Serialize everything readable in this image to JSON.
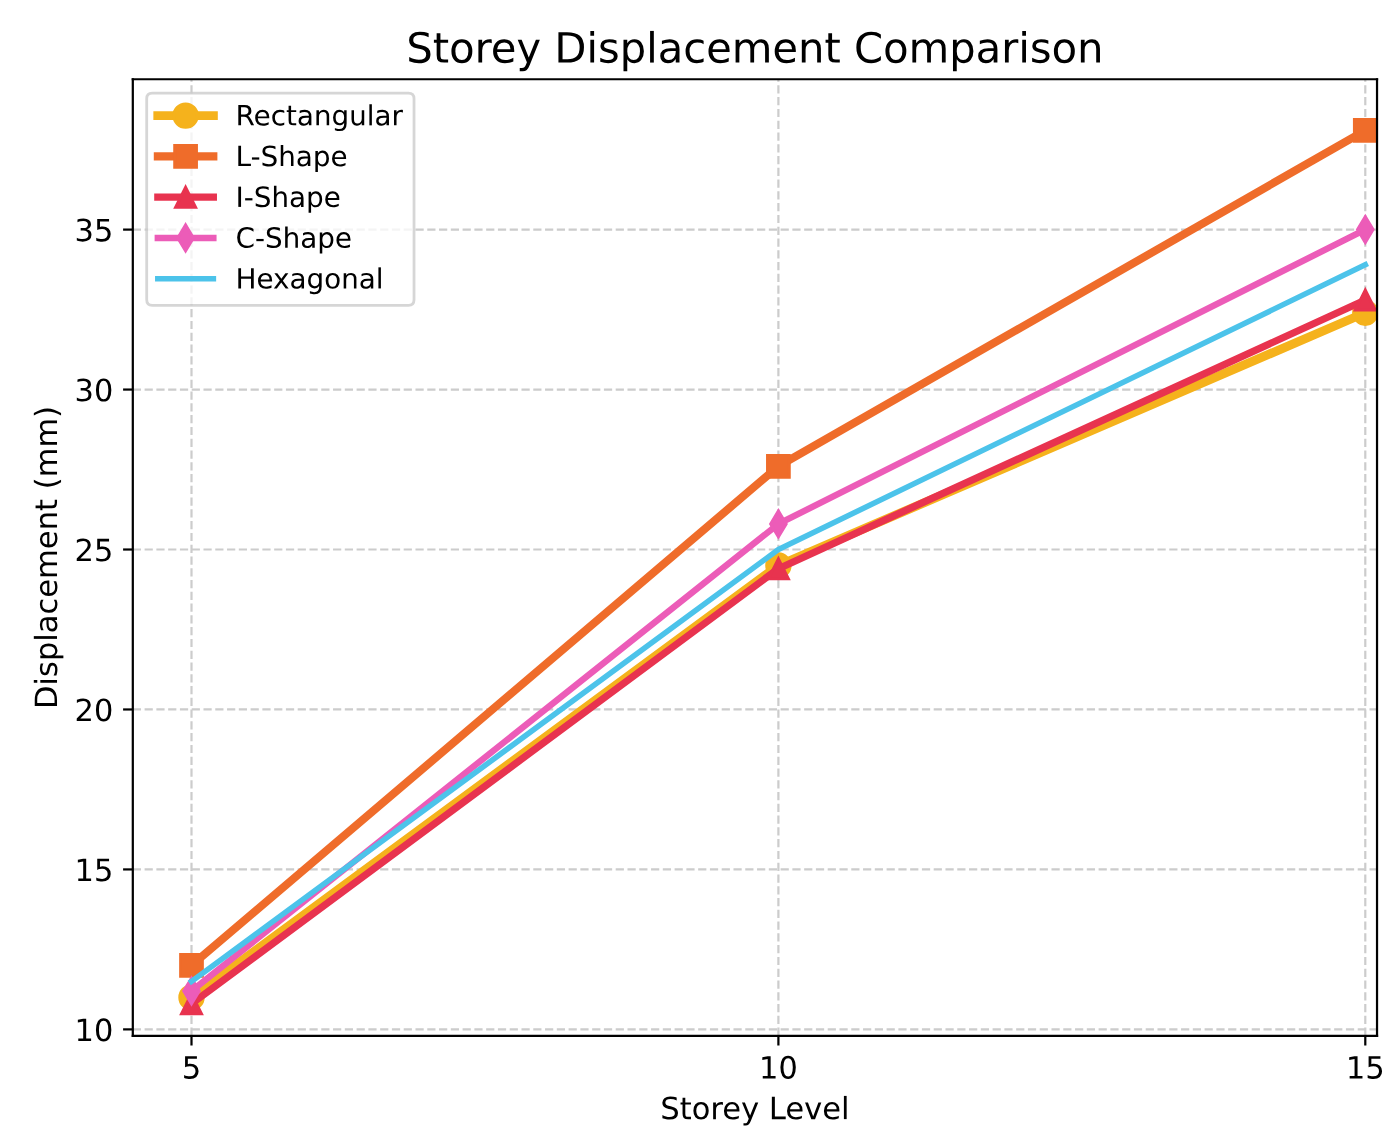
{
  "chart_data": {
    "type": "line",
    "title": "Storey Displacement Comparison",
    "xlabel": "Storey Level",
    "ylabel": "Displacement (mm)",
    "x": [
      5,
      10,
      15
    ],
    "series": [
      {
        "name": "Rectangular",
        "color": "#f5b21c",
        "marker": "circle",
        "values": [
          11.0,
          24.5,
          32.4
        ]
      },
      {
        "name": "L-Shape",
        "color": "#ef6c2a",
        "marker": "square",
        "values": [
          12.0,
          27.6,
          38.1
        ]
      },
      {
        "name": "I-Shape",
        "color": "#e8334f",
        "marker": "triangle",
        "values": [
          10.8,
          24.4,
          32.8
        ]
      },
      {
        "name": "C-Shape",
        "color": "#ec5cb8",
        "marker": "diamond",
        "values": [
          11.2,
          25.8,
          35.0
        ]
      },
      {
        "name": "Hexagonal",
        "color": "#4cc3ea",
        "marker": "none",
        "values": [
          11.5,
          25.0,
          33.9
        ]
      }
    ],
    "xlim": [
      4.5,
      15.1
    ],
    "ylim": [
      9.8,
      39.7
    ],
    "xticks": [
      5,
      10,
      15
    ],
    "yticks": [
      10,
      15,
      20,
      25,
      30,
      35
    ],
    "grid": true,
    "legend": "top left",
    "line_style": "solid"
  }
}
